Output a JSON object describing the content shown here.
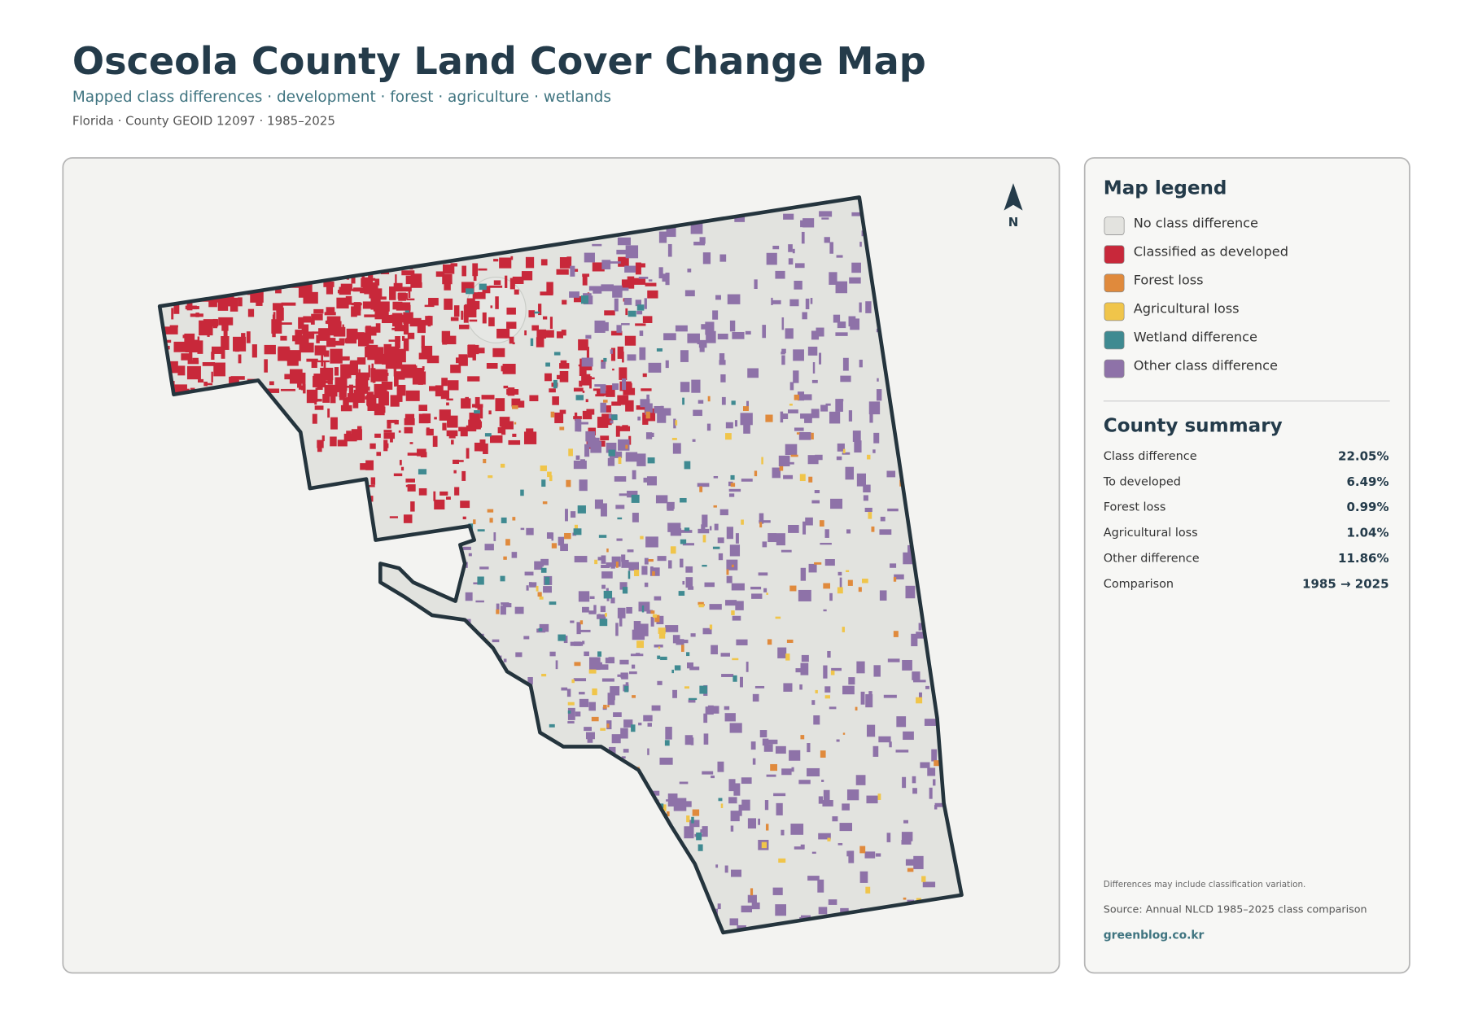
{
  "header": {
    "title": "Osceola County Land Cover Change Map",
    "subtitle": "Mapped class differences · development · forest · agriculture · wetlands",
    "meta": "Florida · County GEOID 12097 · 1985–2025"
  },
  "map": {
    "north": "N"
  },
  "legend": {
    "title": "Map legend",
    "items": [
      {
        "label": "No class difference",
        "color": "#e3e3df"
      },
      {
        "label": "Classified as developed",
        "color": "#c8283a"
      },
      {
        "label": "Forest loss",
        "color": "#e08a3c"
      },
      {
        "label": "Agricultural loss",
        "color": "#f0c54a"
      },
      {
        "label": "Wetland difference",
        "color": "#3f8a91"
      },
      {
        "label": "Other class difference",
        "color": "#8e72a8"
      }
    ]
  },
  "summary": {
    "title": "County summary",
    "rows": [
      [
        "Class difference",
        "22.05%"
      ],
      [
        "To developed",
        "6.49%"
      ],
      [
        "Forest loss",
        "0.99%"
      ],
      [
        "Agricultural loss",
        "1.04%"
      ],
      [
        "Other difference",
        "11.86%"
      ],
      [
        "Comparison",
        "1985 → 2025"
      ]
    ]
  },
  "notes": {
    "disclaimer": "Differences may include classification variation.",
    "source": "Source: Annual NLCD 1985–2025 class comparison",
    "site": "greenblog.co.kr"
  }
}
